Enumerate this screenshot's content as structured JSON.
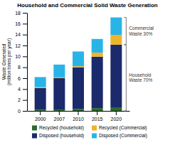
{
  "chart_data": {
    "type": "bar",
    "stacked": true,
    "title": "Household and Commercial Solid Waste Generation",
    "ylabel": "Waste Generated\n(million tones per year)",
    "categories": [
      "2000",
      "2007",
      "2010",
      "2015",
      "2020"
    ],
    "series": [
      {
        "name": "Recycled (household)",
        "color": "#2d6a2d",
        "values": [
          0.2,
          0.25,
          0.35,
          0.5,
          0.65
        ]
      },
      {
        "name": "Disposed (household)",
        "color": "#1b2a6b",
        "values": [
          4.0,
          5.75,
          7.65,
          9.45,
          11.5
        ]
      },
      {
        "name": "Recycled (Commercial)",
        "color": "#f0b429",
        "values": [
          0.15,
          0.15,
          0.2,
          0.75,
          1.8
        ]
      },
      {
        "name": "Disposed (Commercial)",
        "color": "#29b4e8",
        "values": [
          1.85,
          2.35,
          2.7,
          2.5,
          3.2
        ]
      }
    ],
    "annotations": [
      "Commercial\nWaste 30%",
      "Household\nWaste 70%"
    ],
    "ylim": [
      0,
      18
    ],
    "yticks": [
      0,
      2,
      4,
      6,
      8,
      10,
      12,
      14,
      16,
      18
    ],
    "grid": false,
    "legend": "bottom"
  }
}
